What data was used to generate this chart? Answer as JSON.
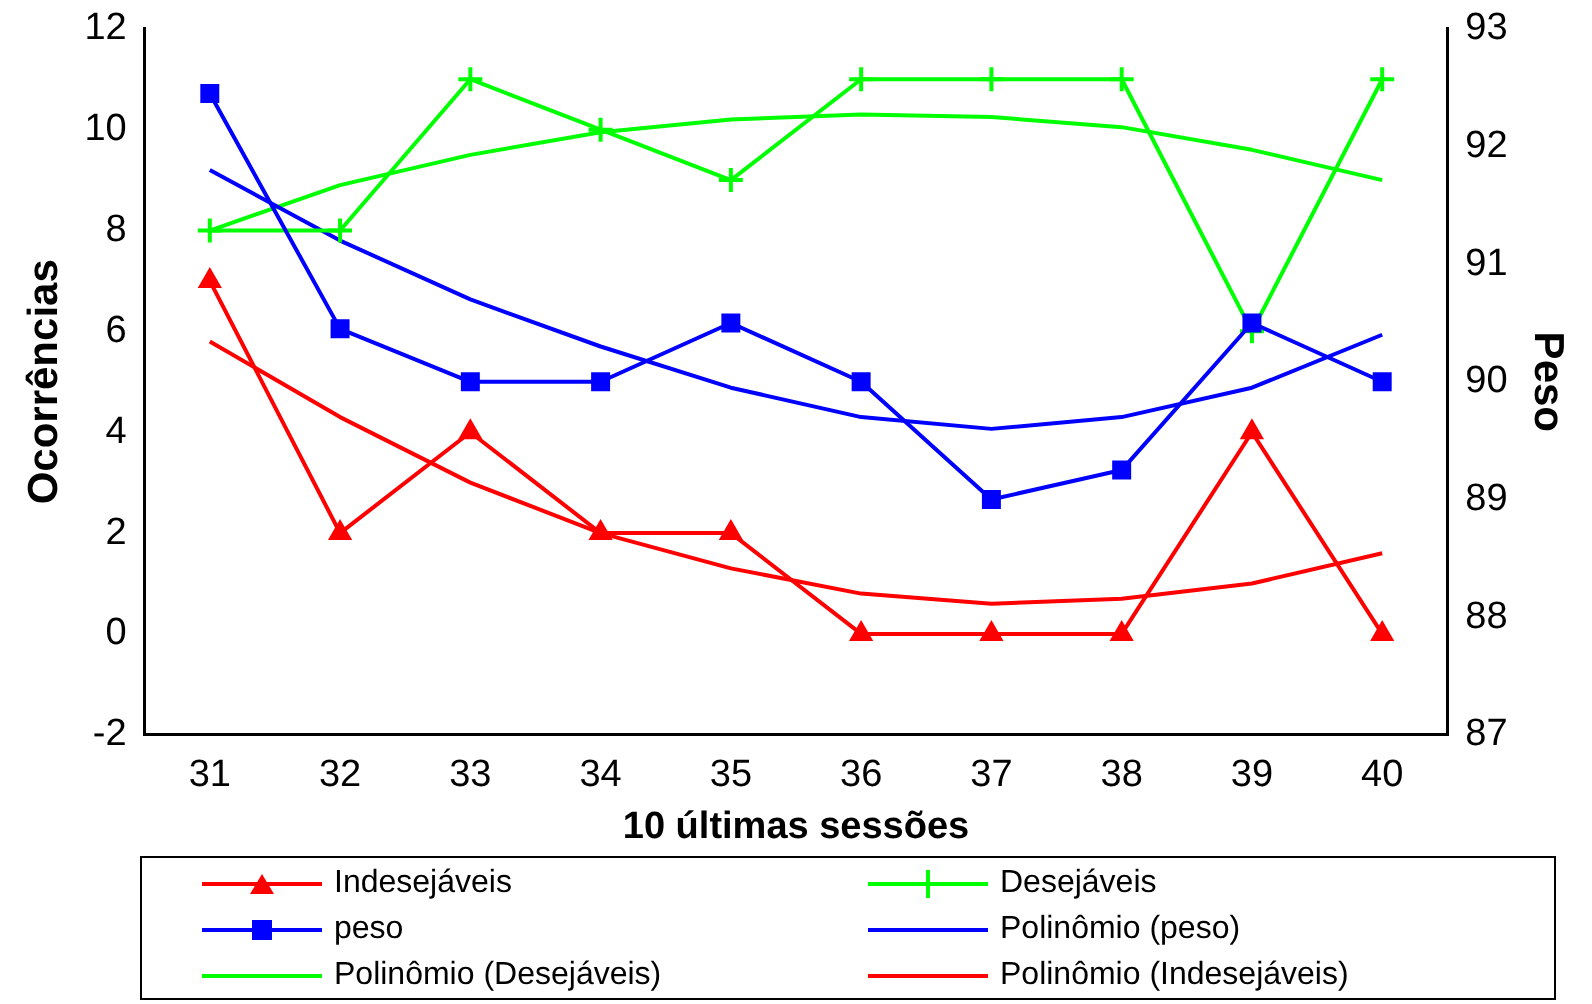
{
  "chart_data": {
    "type": "line",
    "xlabel": "10 últimas sessões",
    "ylabel": "Ocorrências",
    "y2label": "Peso",
    "categories": [
      "31",
      "32",
      "33",
      "34",
      "35",
      "36",
      "37",
      "38",
      "39",
      "40"
    ],
    "series": [
      {
        "name": "Indesejáveis",
        "color": "#ff0000",
        "marker": "triangle",
        "values": [
          7,
          2,
          4,
          2,
          2,
          0,
          0,
          0,
          4,
          0
        ]
      },
      {
        "name": "Desejáveis",
        "color": "#00ff00",
        "marker": "cross",
        "values": [
          8,
          8,
          11,
          10,
          9,
          11,
          11,
          11,
          6,
          11
        ]
      },
      {
        "name": "peso",
        "color": "#0000ff",
        "marker": "square",
        "axis": "y2",
        "values": [
          92.45,
          90.45,
          90,
          90,
          90.5,
          90,
          89,
          89.25,
          90.5,
          90
        ]
      },
      {
        "name": "Polinômio (peso)",
        "color": "#0000ff",
        "marker": "none",
        "axis": "y2",
        "values": [
          91.8,
          91.2,
          90.7,
          90.3,
          89.95,
          89.7,
          89.6,
          89.7,
          89.95,
          90.4
        ]
      },
      {
        "name": "Polinômio (Desejáveis)",
        "color": "#00ff00",
        "marker": "none",
        "values": [
          8.0,
          8.9,
          9.5,
          9.95,
          10.2,
          10.3,
          10.25,
          10.05,
          9.6,
          9.0
        ]
      },
      {
        "name": "Polinômio (Indesejáveis)",
        "color": "#ff0000",
        "marker": "none",
        "values": [
          5.8,
          4.3,
          3.0,
          2.0,
          1.3,
          0.8,
          0.6,
          0.7,
          1.0,
          1.6
        ]
      }
    ],
    "ylim": [
      -2,
      12
    ],
    "yticks": [
      -2,
      0,
      2,
      4,
      6,
      8,
      10,
      12
    ],
    "y2lim": [
      87,
      93
    ],
    "y2ticks": [
      87,
      88,
      89,
      90,
      91,
      92,
      93
    ],
    "grid": false,
    "legend": "bottom"
  }
}
